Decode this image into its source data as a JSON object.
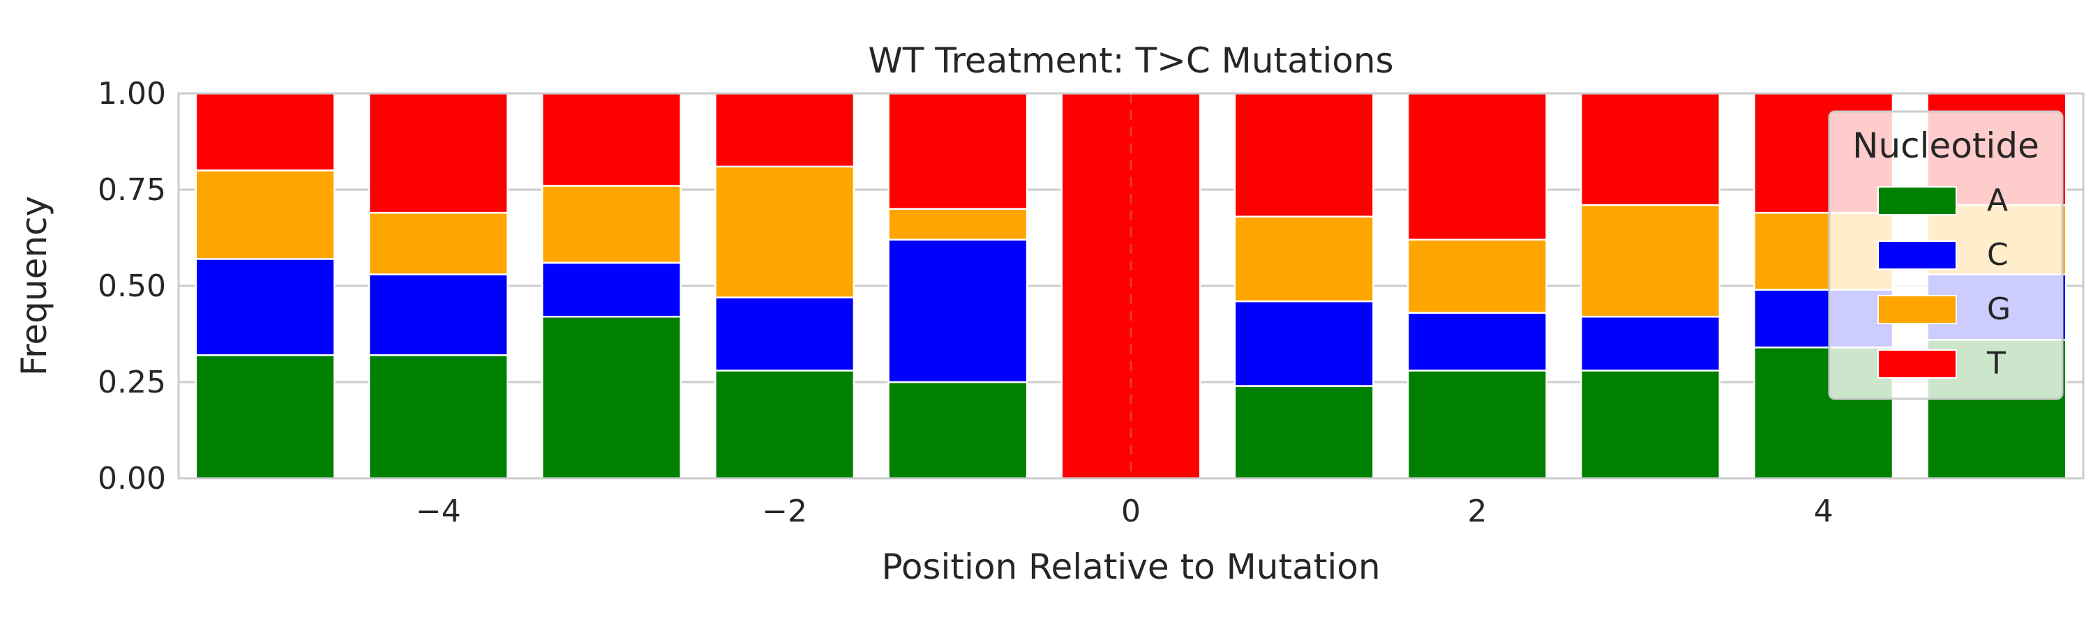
{
  "chart_data": {
    "type": "bar",
    "stacked": true,
    "title": "WT Treatment: T>C Mutations",
    "xlabel": "Position Relative to Mutation",
    "ylabel": "Frequency",
    "xlim": [
      -5.5,
      5.5
    ],
    "ylim": [
      0,
      1
    ],
    "x": [
      -5,
      -4,
      -3,
      -2,
      -1,
      0,
      1,
      2,
      3,
      4,
      5
    ],
    "x_ticks": [
      -4,
      -2,
      0,
      2,
      4
    ],
    "x_tick_labels": [
      "−4",
      "−2",
      "0",
      "2",
      "4"
    ],
    "y_ticks": [
      0,
      0.25,
      0.5,
      0.75,
      1.0
    ],
    "y_tick_labels": [
      "0.00",
      "0.25",
      "0.50",
      "0.75",
      "1.00"
    ],
    "grid": true,
    "reference_line_x": 0,
    "legend": {
      "title": "Nucleotide",
      "placement": "upper-right"
    },
    "series": [
      {
        "name": "A",
        "color": "#008000",
        "values": [
          0.32,
          0.32,
          0.42,
          0.28,
          0.25,
          0.0,
          0.24,
          0.28,
          0.28,
          0.34,
          0.36
        ]
      },
      {
        "name": "C",
        "color": "#0000ff",
        "values": [
          0.25,
          0.21,
          0.14,
          0.19,
          0.37,
          0.0,
          0.22,
          0.15,
          0.14,
          0.15,
          0.17
        ]
      },
      {
        "name": "G",
        "color": "#ffa500",
        "values": [
          0.23,
          0.16,
          0.2,
          0.34,
          0.08,
          0.0,
          0.22,
          0.19,
          0.29,
          0.2,
          0.18
        ]
      },
      {
        "name": "T",
        "color": "#ff0000",
        "values": [
          0.2,
          0.31,
          0.24,
          0.19,
          0.3,
          1.0,
          0.32,
          0.38,
          0.29,
          0.31,
          0.29
        ]
      }
    ]
  }
}
